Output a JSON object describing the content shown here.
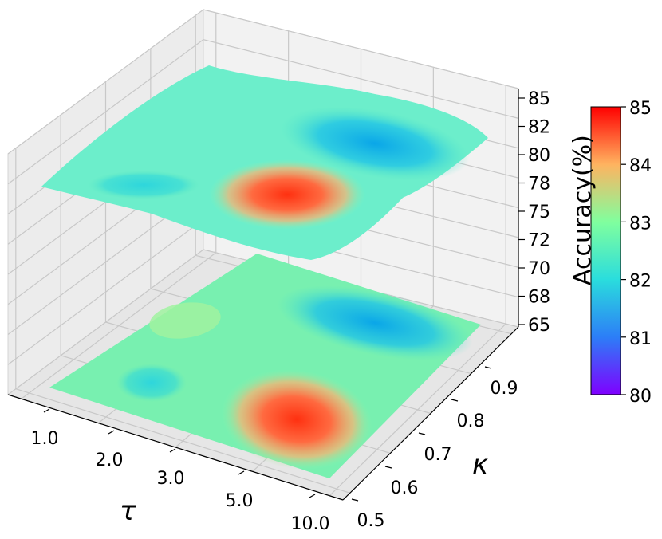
{
  "chart_data": {
    "type": "surface3d",
    "xlabel": "τ",
    "ylabel": "κ",
    "zlabel": "Accuracy(%)",
    "x_ticks": [
      "1.0",
      "2.0",
      "3.0",
      "5.0",
      "10.0"
    ],
    "y_ticks": [
      "0.5",
      "0.6",
      "0.7",
      "0.8",
      "0.9"
    ],
    "z_ticks": [
      "65",
      "68",
      "70",
      "72",
      "75",
      "78",
      "80",
      "82",
      "85"
    ],
    "zlim": [
      65,
      85
    ],
    "colorbar": {
      "label": "Accuracy(%)",
      "ticks": [
        "80",
        "81",
        "82",
        "83",
        "84",
        "85"
      ],
      "range": [
        80,
        85
      ],
      "colormap": "rainbow"
    },
    "grid": true,
    "contour_projection": "floor",
    "x_values": [
      "1.0",
      "2.0",
      "3.0",
      "5.0",
      "10.0"
    ],
    "y_values": [
      0.5,
      0.6,
      0.7,
      0.8,
      0.9
    ],
    "z_values": [
      [
        82.0,
        82.5,
        82.2,
        82.0,
        81.8
      ],
      [
        81.8,
        82.3,
        82.5,
        82.2,
        82.0
      ],
      [
        82.3,
        82.8,
        82.0,
        81.5,
        81.6
      ],
      [
        83.0,
        84.3,
        82.0,
        81.2,
        81.0
      ],
      [
        82.5,
        83.2,
        81.8,
        81.5,
        81.6
      ]
    ]
  }
}
